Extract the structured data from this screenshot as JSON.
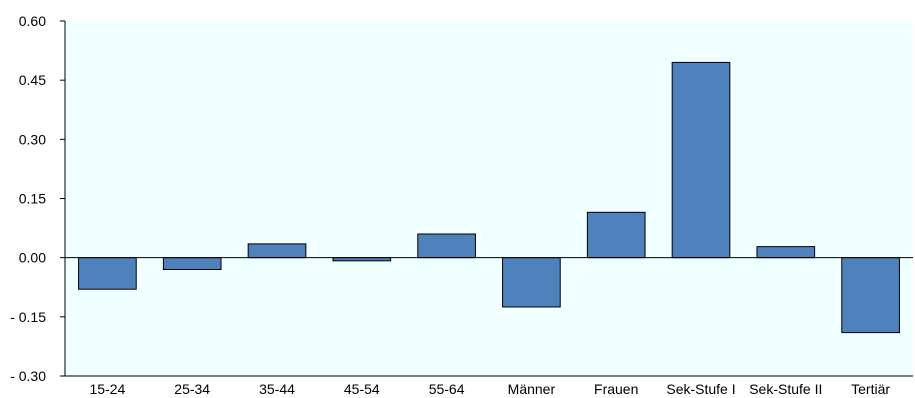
{
  "chart_data": {
    "type": "bar",
    "title": "",
    "xlabel": "",
    "ylabel": "",
    "categories": [
      "15-24",
      "25-34",
      "35-44",
      "45-54",
      "55-64",
      "Männer",
      "Frauen",
      "Sek-Stufe I",
      "Sek-Stufe II",
      "Tertiär"
    ],
    "values": [
      -0.08,
      -0.03,
      0.035,
      -0.008,
      0.06,
      -0.125,
      0.115,
      0.495,
      0.028,
      -0.19
    ],
    "ylim": [
      -0.3,
      0.6
    ],
    "yticks": [
      0.6,
      0.45,
      0.3,
      0.15,
      0.0,
      -0.15,
      -0.3
    ],
    "ytick_labels": [
      "0.60",
      "0.45",
      "0.30",
      "0.15",
      "0.00",
      "- 0.15",
      "- 0.30"
    ],
    "grid": false,
    "legend": "none",
    "colors": {
      "bar": "#4f81bd",
      "plot_background": "#f0ffff",
      "axis": "#000000"
    }
  }
}
